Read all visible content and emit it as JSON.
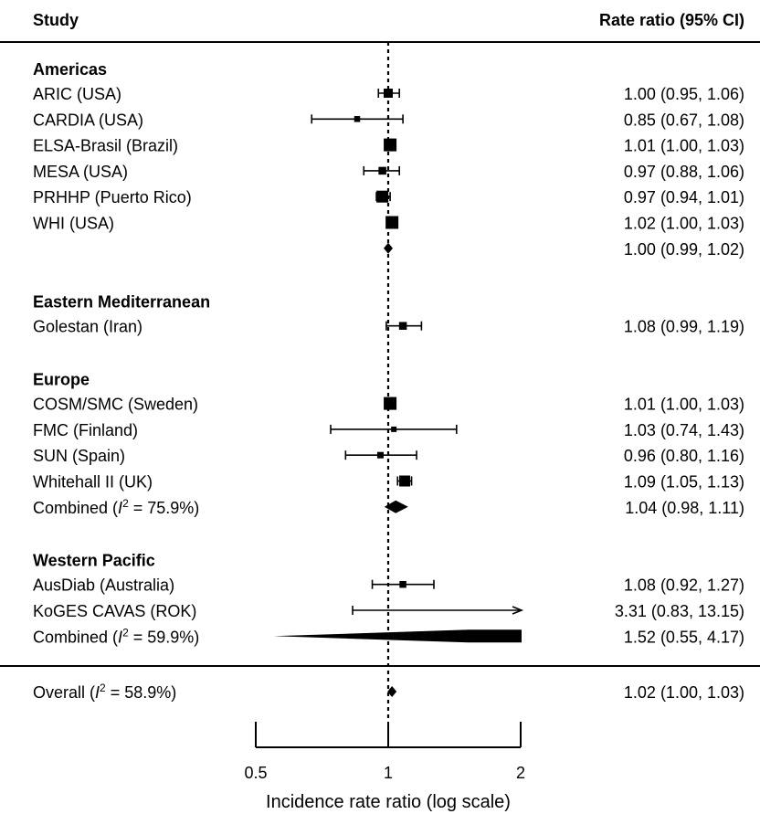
{
  "chart_data": {
    "type": "forest",
    "headers": {
      "study": "Study",
      "estimate": "Rate ratio (95% CI)"
    },
    "xlabel": "Incidence rate ratio (log scale)",
    "x_scale": "log",
    "xlim": [
      0.5,
      2
    ],
    "x_ticks": [
      "0.5",
      "1",
      "2"
    ],
    "reference_line": 1,
    "groups": [
      {
        "name": "Americas",
        "studies": [
          {
            "label": "ARIC (USA)",
            "rr": 1.0,
            "lo": 0.95,
            "hi": 1.06,
            "text": "1.00 (0.95,  1.06)",
            "weight": 0.6
          },
          {
            "label": "CARDIA (USA)",
            "rr": 0.85,
            "lo": 0.67,
            "hi": 1.08,
            "text": "0.85 (0.67,  1.08)",
            "weight": 0.25
          },
          {
            "label": "ELSA-Brasil (Brazil)",
            "rr": 1.01,
            "lo": 1.0,
            "hi": 1.03,
            "text": "1.01 (1.00,  1.03)",
            "weight": 1.0
          },
          {
            "label": "MESA (USA)",
            "rr": 0.97,
            "lo": 0.88,
            "hi": 1.06,
            "text": "0.97 (0.88,  1.06)",
            "weight": 0.45
          },
          {
            "label": "PRHHP (Puerto Rico)",
            "rr": 0.97,
            "lo": 0.94,
            "hi": 1.01,
            "text": "0.97 (0.94,  1.01)",
            "weight": 0.9
          },
          {
            "label": "WHI (USA)",
            "rr": 1.02,
            "lo": 1.0,
            "hi": 1.03,
            "text": "1.02 (1.00,  1.03)",
            "weight": 1.0
          }
        ],
        "combined": {
          "label": "",
          "rr": 1.0,
          "lo": 0.99,
          "hi": 1.02,
          "text": "1.00 (0.99,  1.02)"
        }
      },
      {
        "name": "Eastern Mediterranean",
        "studies": [
          {
            "label": "Golestan (Iran)",
            "rr": 1.08,
            "lo": 0.99,
            "hi": 1.19,
            "text": "1.08 (0.99,  1.19)",
            "weight": 0.45
          }
        ]
      },
      {
        "name": "Europe",
        "studies": [
          {
            "label": "COSM/SMC (Sweden)",
            "rr": 1.01,
            "lo": 1.0,
            "hi": 1.03,
            "text": "1.01 (1.00,  1.03)",
            "weight": 1.0
          },
          {
            "label": "FMC (Finland)",
            "rr": 1.03,
            "lo": 0.74,
            "hi": 1.43,
            "text": "1.03 (0.74,  1.43)",
            "weight": 0.2
          },
          {
            "label": "SUN (Spain)",
            "rr": 0.96,
            "lo": 0.8,
            "hi": 1.16,
            "text": "0.96 (0.80,  1.16)",
            "weight": 0.3
          },
          {
            "label": "Whitehall II (UK)",
            "rr": 1.09,
            "lo": 1.05,
            "hi": 1.13,
            "text": "1.09 (1.05,  1.13)",
            "weight": 0.8
          }
        ],
        "combined": {
          "label": "Combined (",
          "i2": "= 75.9%)",
          "rr": 1.04,
          "lo": 0.98,
          "hi": 1.11,
          "text": "1.04 (0.98,  1.11)"
        }
      },
      {
        "name": "Western Pacific",
        "studies": [
          {
            "label": "AusDiab (Australia)",
            "rr": 1.08,
            "lo": 0.92,
            "hi": 1.27,
            "text": "1.08 (0.92,  1.27)",
            "weight": 0.35
          },
          {
            "label": "KoGES CAVAS (ROK)",
            "rr": 3.31,
            "lo": 0.83,
            "hi": 13.15,
            "text": "3.31 (0.83,  13.15)",
            "weight": 0.0
          }
        ],
        "combined": {
          "label": "Combined (",
          "i2": "= 59.9%)",
          "rr": 1.52,
          "lo": 0.55,
          "hi": 4.17,
          "text": "1.52 (0.55,  4.17)"
        }
      }
    ],
    "overall": {
      "label": "Overall (",
      "i2": "= 58.9%)",
      "rr": 1.02,
      "lo": 1.0,
      "hi": 1.03,
      "text": "1.02 (1.00,  1.03)"
    },
    "i2_symbol": "I",
    "i2_superscript": "2"
  }
}
